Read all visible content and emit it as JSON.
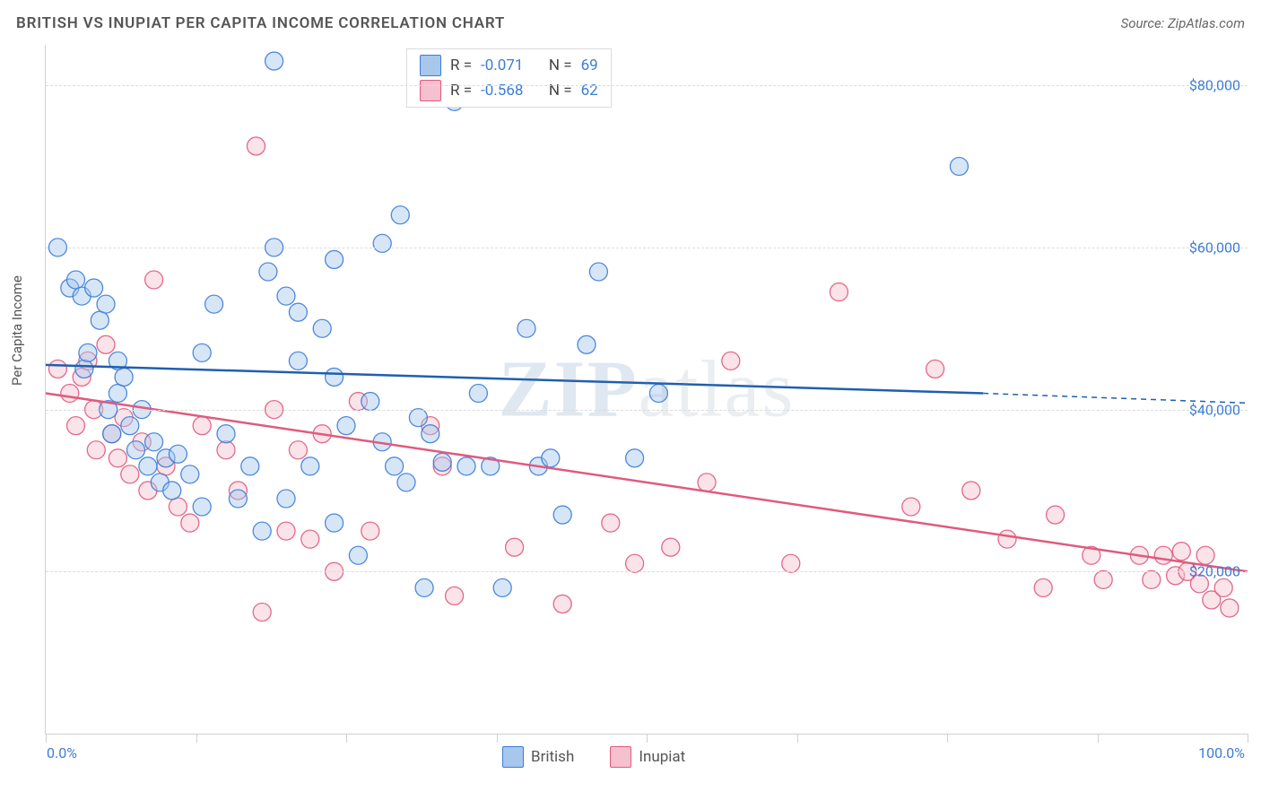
{
  "header": {
    "title": "BRITISH VS INUPIAT PER CAPITA INCOME CORRELATION CHART",
    "source": "Source: ZipAtlas.com"
  },
  "chart": {
    "type": "scatter",
    "ylabel": "Per Capita Income",
    "xlim": [
      0,
      100
    ],
    "ylim": [
      0,
      85000
    ],
    "ytick_values": [
      20000,
      40000,
      60000,
      80000
    ],
    "ytick_labels": [
      "$20,000",
      "$40,000",
      "$60,000",
      "$80,000"
    ],
    "xtick_positions": [
      0,
      12.5,
      25,
      37.5,
      50,
      62.5,
      75,
      87.5,
      100
    ],
    "xtick_labels_shown": {
      "0": "0.0%",
      "100": "100.0%"
    },
    "grid_color": "#dcdcdc",
    "background_color": "#ffffff",
    "watermark": "ZIPatlas",
    "marker_radius": 10,
    "marker_opacity": 0.45,
    "marker_stroke_opacity": 0.9,
    "trendline_width": 2.5,
    "trendline_dash_extrapolate": "6,5",
    "series": {
      "british": {
        "label": "British",
        "color_fill": "#a7c7ed",
        "color_stroke": "#3b7dd8",
        "trendline_color": "#1f5fb0",
        "R_label": "R =",
        "R_value": "-0.071",
        "N_label": "N =",
        "N_value": "69",
        "trend_start": [
          0,
          45500
        ],
        "trend_solid_end": [
          78,
          42000
        ],
        "trend_dash_end": [
          100,
          40800
        ],
        "points": [
          [
            1,
            60000
          ],
          [
            2,
            55000
          ],
          [
            2.5,
            56000
          ],
          [
            3,
            54000
          ],
          [
            3.2,
            45000
          ],
          [
            3.5,
            47000
          ],
          [
            4,
            55000
          ],
          [
            4.5,
            51000
          ],
          [
            5,
            53000
          ],
          [
            5.2,
            40000
          ],
          [
            5.5,
            37000
          ],
          [
            6,
            42000
          ],
          [
            6,
            46000
          ],
          [
            6.5,
            44000
          ],
          [
            7,
            38000
          ],
          [
            7.5,
            35000
          ],
          [
            8,
            40000
          ],
          [
            8.5,
            33000
          ],
          [
            9,
            36000
          ],
          [
            9.5,
            31000
          ],
          [
            10,
            34000
          ],
          [
            10.5,
            30000
          ],
          [
            11,
            34500
          ],
          [
            12,
            32000
          ],
          [
            13,
            28000
          ],
          [
            13,
            47000
          ],
          [
            14,
            53000
          ],
          [
            15,
            37000
          ],
          [
            16,
            29000
          ],
          [
            17,
            33000
          ],
          [
            18,
            25000
          ],
          [
            18.5,
            57000
          ],
          [
            19,
            60000
          ],
          [
            19,
            83000
          ],
          [
            20,
            29000
          ],
          [
            20,
            54000
          ],
          [
            21,
            46000
          ],
          [
            21,
            52000
          ],
          [
            22,
            33000
          ],
          [
            23,
            50000
          ],
          [
            24,
            26000
          ],
          [
            24,
            58500
          ],
          [
            24,
            44000
          ],
          [
            25,
            38000
          ],
          [
            26,
            22000
          ],
          [
            27,
            41000
          ],
          [
            28,
            36000
          ],
          [
            28,
            60500
          ],
          [
            29,
            33000
          ],
          [
            29.5,
            64000
          ],
          [
            30,
            31000
          ],
          [
            31,
            39000
          ],
          [
            31.5,
            18000
          ],
          [
            32,
            37000
          ],
          [
            33,
            33500
          ],
          [
            34,
            78000
          ],
          [
            35,
            33000
          ],
          [
            36,
            42000
          ],
          [
            37,
            33000
          ],
          [
            38,
            18000
          ],
          [
            40,
            50000
          ],
          [
            41,
            33000
          ],
          [
            42,
            34000
          ],
          [
            43,
            27000
          ],
          [
            45,
            48000
          ],
          [
            46,
            57000
          ],
          [
            49,
            34000
          ],
          [
            51,
            42000
          ],
          [
            76,
            70000
          ]
        ]
      },
      "inupiat": {
        "label": "Inupiat",
        "color_fill": "#f5c1cf",
        "color_stroke": "#e05a7e",
        "trendline_color": "#e05a7e",
        "R_label": "R =",
        "R_value": "-0.568",
        "N_label": "N =",
        "N_value": "62",
        "trend_start": [
          0,
          42000
        ],
        "trend_solid_end": [
          100,
          20000
        ],
        "trend_dash_end": null,
        "points": [
          [
            1,
            45000
          ],
          [
            2,
            42000
          ],
          [
            2.5,
            38000
          ],
          [
            3,
            44000
          ],
          [
            3.5,
            46000
          ],
          [
            4,
            40000
          ],
          [
            4.2,
            35000
          ],
          [
            5,
            48000
          ],
          [
            5.5,
            37000
          ],
          [
            6,
            34000
          ],
          [
            6.5,
            39000
          ],
          [
            7,
            32000
          ],
          [
            8,
            36000
          ],
          [
            8.5,
            30000
          ],
          [
            9,
            56000
          ],
          [
            10,
            33000
          ],
          [
            11,
            28000
          ],
          [
            12,
            26000
          ],
          [
            13,
            38000
          ],
          [
            15,
            35000
          ],
          [
            16,
            30000
          ],
          [
            17.5,
            72500
          ],
          [
            18,
            15000
          ],
          [
            19,
            40000
          ],
          [
            20,
            25000
          ],
          [
            21,
            35000
          ],
          [
            22,
            24000
          ],
          [
            23,
            37000
          ],
          [
            24,
            20000
          ],
          [
            26,
            41000
          ],
          [
            27,
            25000
          ],
          [
            32,
            38000
          ],
          [
            33,
            33000
          ],
          [
            34,
            17000
          ],
          [
            39,
            23000
          ],
          [
            43,
            16000
          ],
          [
            47,
            26000
          ],
          [
            49,
            21000
          ],
          [
            52,
            23000
          ],
          [
            55,
            31000
          ],
          [
            57,
            46000
          ],
          [
            62,
            21000
          ],
          [
            66,
            54500
          ],
          [
            72,
            28000
          ],
          [
            74,
            45000
          ],
          [
            77,
            30000
          ],
          [
            80,
            24000
          ],
          [
            83,
            18000
          ],
          [
            84,
            27000
          ],
          [
            87,
            22000
          ],
          [
            88,
            19000
          ],
          [
            91,
            22000
          ],
          [
            92,
            19000
          ],
          [
            93,
            22000
          ],
          [
            94,
            19500
          ],
          [
            94.5,
            22500
          ],
          [
            95,
            20000
          ],
          [
            96,
            18500
          ],
          [
            96.5,
            22000
          ],
          [
            97,
            16500
          ],
          [
            98,
            18000
          ],
          [
            98.5,
            15500
          ]
        ]
      }
    },
    "legend_bottom": [
      "british",
      "inupiat"
    ]
  }
}
